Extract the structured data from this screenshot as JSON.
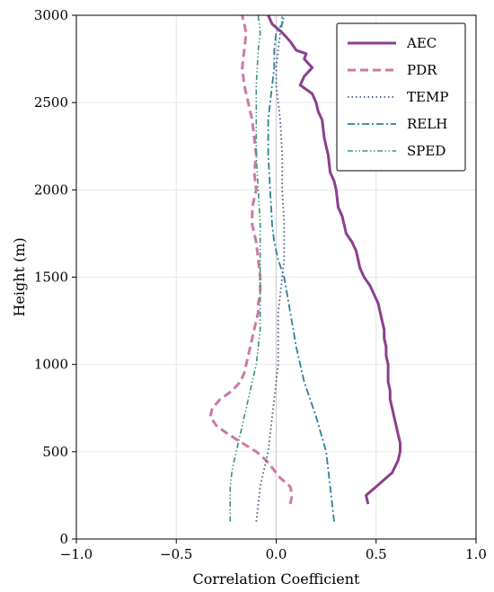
{
  "chart_data": {
    "type": "line",
    "xlabel": "Correlation Coefficient",
    "ylabel": "Height (m)",
    "xlim": [
      -1.0,
      1.0
    ],
    "ylim": [
      0,
      3000
    ],
    "xticks": [
      -1.0,
      -0.5,
      0.0,
      0.5,
      1.0
    ],
    "xtick_labels": [
      "−1.0",
      "−0.5",
      "0.0",
      "0.5",
      "1.0"
    ],
    "yticks": [
      0,
      500,
      1000,
      1500,
      2000,
      2500,
      3000
    ],
    "ytick_labels": [
      "0",
      "500",
      "1000",
      "1500",
      "2000",
      "2500",
      "3000"
    ],
    "grid": true,
    "legend_position": "top-right",
    "series": [
      {
        "name": "AEC",
        "color": "#8b3f8e",
        "style": "solid",
        "points": [
          [
            0.46,
            200
          ],
          [
            0.45,
            250
          ],
          [
            0.5,
            300
          ],
          [
            0.55,
            350
          ],
          [
            0.58,
            380
          ],
          [
            0.61,
            450
          ],
          [
            0.62,
            500
          ],
          [
            0.62,
            550
          ],
          [
            0.61,
            600
          ],
          [
            0.6,
            650
          ],
          [
            0.59,
            700
          ],
          [
            0.58,
            750
          ],
          [
            0.57,
            800
          ],
          [
            0.57,
            850
          ],
          [
            0.56,
            900
          ],
          [
            0.56,
            1000
          ],
          [
            0.55,
            1050
          ],
          [
            0.55,
            1100
          ],
          [
            0.54,
            1150
          ],
          [
            0.54,
            1200
          ],
          [
            0.53,
            1250
          ],
          [
            0.52,
            1300
          ],
          [
            0.51,
            1350
          ],
          [
            0.49,
            1400
          ],
          [
            0.47,
            1450
          ],
          [
            0.44,
            1500
          ],
          [
            0.42,
            1550
          ],
          [
            0.41,
            1600
          ],
          [
            0.4,
            1650
          ],
          [
            0.38,
            1700
          ],
          [
            0.35,
            1750
          ],
          [
            0.34,
            1800
          ],
          [
            0.33,
            1850
          ],
          [
            0.31,
            1900
          ],
          [
            0.3,
            2000
          ],
          [
            0.29,
            2050
          ],
          [
            0.27,
            2100
          ],
          [
            0.26,
            2200
          ],
          [
            0.25,
            2250
          ],
          [
            0.24,
            2300
          ],
          [
            0.23,
            2400
          ],
          [
            0.21,
            2450
          ],
          [
            0.2,
            2500
          ],
          [
            0.18,
            2550
          ],
          [
            0.12,
            2600
          ],
          [
            0.14,
            2650
          ],
          [
            0.18,
            2700
          ],
          [
            0.14,
            2750
          ],
          [
            0.15,
            2780
          ],
          [
            0.1,
            2800
          ],
          [
            0.07,
            2850
          ],
          [
            0.03,
            2900
          ],
          [
            -0.02,
            2950
          ],
          [
            -0.04,
            3000
          ]
        ]
      },
      {
        "name": "PDR",
        "color": "#cc79a7",
        "style": "dashed",
        "points": [
          [
            0.07,
            200
          ],
          [
            0.08,
            250
          ],
          [
            0.07,
            300
          ],
          [
            0.02,
            350
          ],
          [
            -0.05,
            450
          ],
          [
            -0.1,
            500
          ],
          [
            -0.17,
            550
          ],
          [
            -0.24,
            600
          ],
          [
            -0.3,
            650
          ],
          [
            -0.33,
            700
          ],
          [
            -0.32,
            750
          ],
          [
            -0.28,
            800
          ],
          [
            -0.22,
            850
          ],
          [
            -0.18,
            900
          ],
          [
            -0.16,
            950
          ],
          [
            -0.15,
            1000
          ],
          [
            -0.14,
            1050
          ],
          [
            -0.13,
            1100
          ],
          [
            -0.11,
            1200
          ],
          [
            -0.1,
            1250
          ],
          [
            -0.09,
            1300
          ],
          [
            -0.09,
            1350
          ],
          [
            -0.08,
            1400
          ],
          [
            -0.08,
            1500
          ],
          [
            -0.09,
            1600
          ],
          [
            -0.1,
            1700
          ],
          [
            -0.12,
            1800
          ],
          [
            -0.12,
            1900
          ],
          [
            -0.1,
            2000
          ],
          [
            -0.11,
            2100
          ],
          [
            -0.1,
            2200
          ],
          [
            -0.11,
            2300
          ],
          [
            -0.12,
            2400
          ],
          [
            -0.14,
            2500
          ],
          [
            -0.16,
            2600
          ],
          [
            -0.17,
            2700
          ],
          [
            -0.16,
            2800
          ],
          [
            -0.15,
            2900
          ],
          [
            -0.17,
            3000
          ]
        ]
      },
      {
        "name": "TEMP",
        "color": "#3e5a7d",
        "style": "dotted",
        "points": [
          [
            -0.1,
            100
          ],
          [
            -0.09,
            200
          ],
          [
            -0.08,
            300
          ],
          [
            -0.06,
            400
          ],
          [
            -0.04,
            500
          ],
          [
            -0.03,
            600
          ],
          [
            -0.02,
            700
          ],
          [
            -0.01,
            800
          ],
          [
            0.0,
            900
          ],
          [
            0.01,
            1000
          ],
          [
            0.01,
            1100
          ],
          [
            0.01,
            1200
          ],
          [
            0.01,
            1300
          ],
          [
            0.02,
            1400
          ],
          [
            0.03,
            1500
          ],
          [
            0.04,
            1600
          ],
          [
            0.04,
            1800
          ],
          [
            0.03,
            2000
          ],
          [
            0.03,
            2200
          ],
          [
            0.02,
            2400
          ],
          [
            0.01,
            2500
          ],
          [
            0.0,
            2600
          ],
          [
            0.0,
            2700
          ],
          [
            0.01,
            2800
          ],
          [
            0.02,
            2900
          ],
          [
            0.04,
            3000
          ]
        ]
      },
      {
        "name": "RELH",
        "color": "#2e7f9e",
        "style": "dashdot",
        "points": [
          [
            0.29,
            100
          ],
          [
            0.28,
            200
          ],
          [
            0.27,
            300
          ],
          [
            0.25,
            500
          ],
          [
            0.2,
            700
          ],
          [
            0.14,
            900
          ],
          [
            0.1,
            1100
          ],
          [
            0.07,
            1300
          ],
          [
            0.04,
            1500
          ],
          [
            0.01,
            1600
          ],
          [
            -0.01,
            1700
          ],
          [
            -0.02,
            1800
          ],
          [
            -0.03,
            2000
          ],
          [
            -0.04,
            2200
          ],
          [
            -0.04,
            2400
          ],
          [
            -0.03,
            2500
          ],
          [
            -0.02,
            2600
          ],
          [
            -0.01,
            2700
          ],
          [
            -0.01,
            2800
          ],
          [
            0.0,
            2900
          ],
          [
            0.03,
            2950
          ],
          [
            0.03,
            3000
          ]
        ]
      },
      {
        "name": "SPED",
        "color": "#3a9577",
        "style": "dashdotdot",
        "points": [
          [
            -0.23,
            100
          ],
          [
            -0.23,
            200
          ],
          [
            -0.23,
            300
          ],
          [
            -0.22,
            400
          ],
          [
            -0.2,
            500
          ],
          [
            -0.18,
            600
          ],
          [
            -0.16,
            700
          ],
          [
            -0.14,
            800
          ],
          [
            -0.12,
            900
          ],
          [
            -0.1,
            1000
          ],
          [
            -0.09,
            1100
          ],
          [
            -0.08,
            1200
          ],
          [
            -0.08,
            1400
          ],
          [
            -0.08,
            1600
          ],
          [
            -0.08,
            1800
          ],
          [
            -0.09,
            2000
          ],
          [
            -0.1,
            2200
          ],
          [
            -0.1,
            2400
          ],
          [
            -0.1,
            2600
          ],
          [
            -0.09,
            2800
          ],
          [
            -0.08,
            2900
          ],
          [
            -0.09,
            3000
          ]
        ]
      }
    ]
  }
}
